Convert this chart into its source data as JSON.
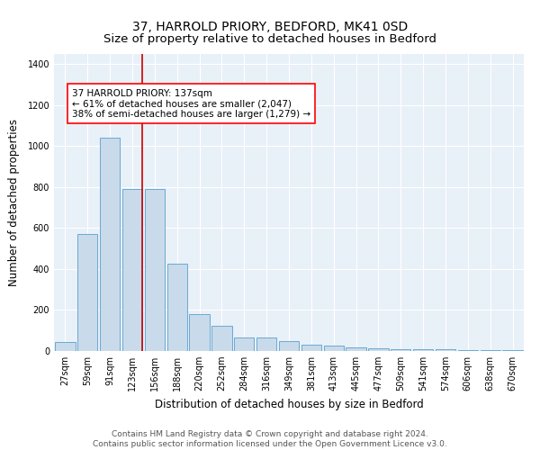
{
  "title": "37, HARROLD PRIORY, BEDFORD, MK41 0SD",
  "subtitle": "Size of property relative to detached houses in Bedford",
  "xlabel": "Distribution of detached houses by size in Bedford",
  "ylabel": "Number of detached properties",
  "bar_color": "#c9daea",
  "bar_edge_color": "#6aaad4",
  "bg_color": "#e8f0f8",
  "grid_color": "#ffffff",
  "fig_color": "#ffffff",
  "categories": [
    "27sqm",
    "59sqm",
    "91sqm",
    "123sqm",
    "156sqm",
    "188sqm",
    "220sqm",
    "252sqm",
    "284sqm",
    "316sqm",
    "349sqm",
    "381sqm",
    "413sqm",
    "445sqm",
    "477sqm",
    "509sqm",
    "541sqm",
    "574sqm",
    "606sqm",
    "638sqm",
    "670sqm"
  ],
  "values": [
    45,
    570,
    1040,
    790,
    790,
    425,
    180,
    125,
    65,
    65,
    50,
    30,
    25,
    18,
    12,
    8,
    8,
    8,
    6,
    6,
    6
  ],
  "vline_color": "#cc0000",
  "vline_pos": 3.43,
  "annotation_text": "37 HARROLD PRIORY: 137sqm\n← 61% of detached houses are smaller (2,047)\n38% of semi-detached houses are larger (1,279) →",
  "ylim": [
    0,
    1450
  ],
  "yticks": [
    0,
    200,
    400,
    600,
    800,
    1000,
    1200,
    1400
  ],
  "footer": "Contains HM Land Registry data © Crown copyright and database right 2024.\nContains public sector information licensed under the Open Government Licence v3.0.",
  "title_fontsize": 10,
  "axis_label_fontsize": 8.5,
  "tick_fontsize": 7,
  "footer_fontsize": 6.5,
  "ann_fontsize": 7.5
}
